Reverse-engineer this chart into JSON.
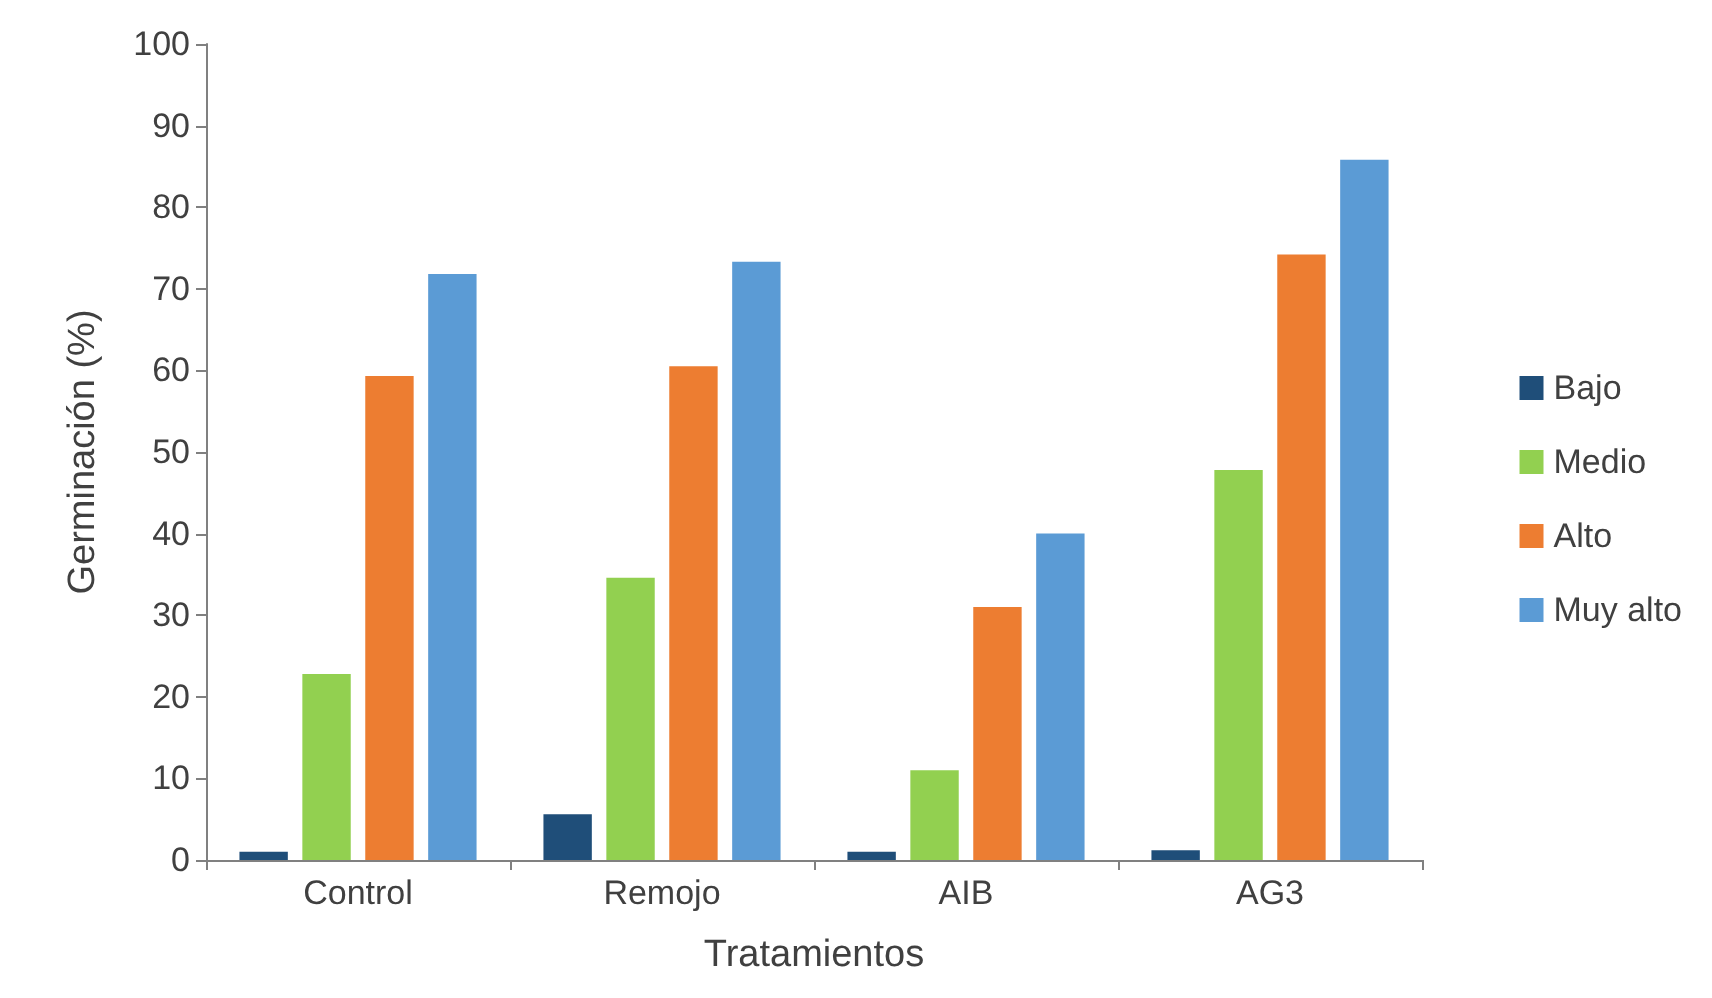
{
  "chart_data": {
    "type": "bar",
    "xlabel": "Tratamientos",
    "ylabel": "Germinación (%)",
    "categories": [
      "Control",
      "Remojo",
      "AIB",
      "AG3"
    ],
    "series": [
      {
        "name": "Bajo",
        "color": "#1f4e79",
        "values": [
          1,
          5.6,
          1,
          1.2
        ]
      },
      {
        "name": "Medio",
        "color": "#92d050",
        "values": [
          22.8,
          34.6,
          11,
          47.8
        ]
      },
      {
        "name": "Alto",
        "color": "#ed7d31",
        "values": [
          59.3,
          60.5,
          31,
          74.2
        ]
      },
      {
        "name": "Muy alto",
        "color": "#5b9bd5",
        "values": [
          71.8,
          73.3,
          40,
          85.8
        ]
      }
    ],
    "ylim": [
      0,
      100
    ],
    "yticks": [
      0,
      10,
      20,
      30,
      40,
      50,
      60,
      70,
      80,
      90,
      100
    ],
    "grid": false,
    "legend": "right"
  }
}
